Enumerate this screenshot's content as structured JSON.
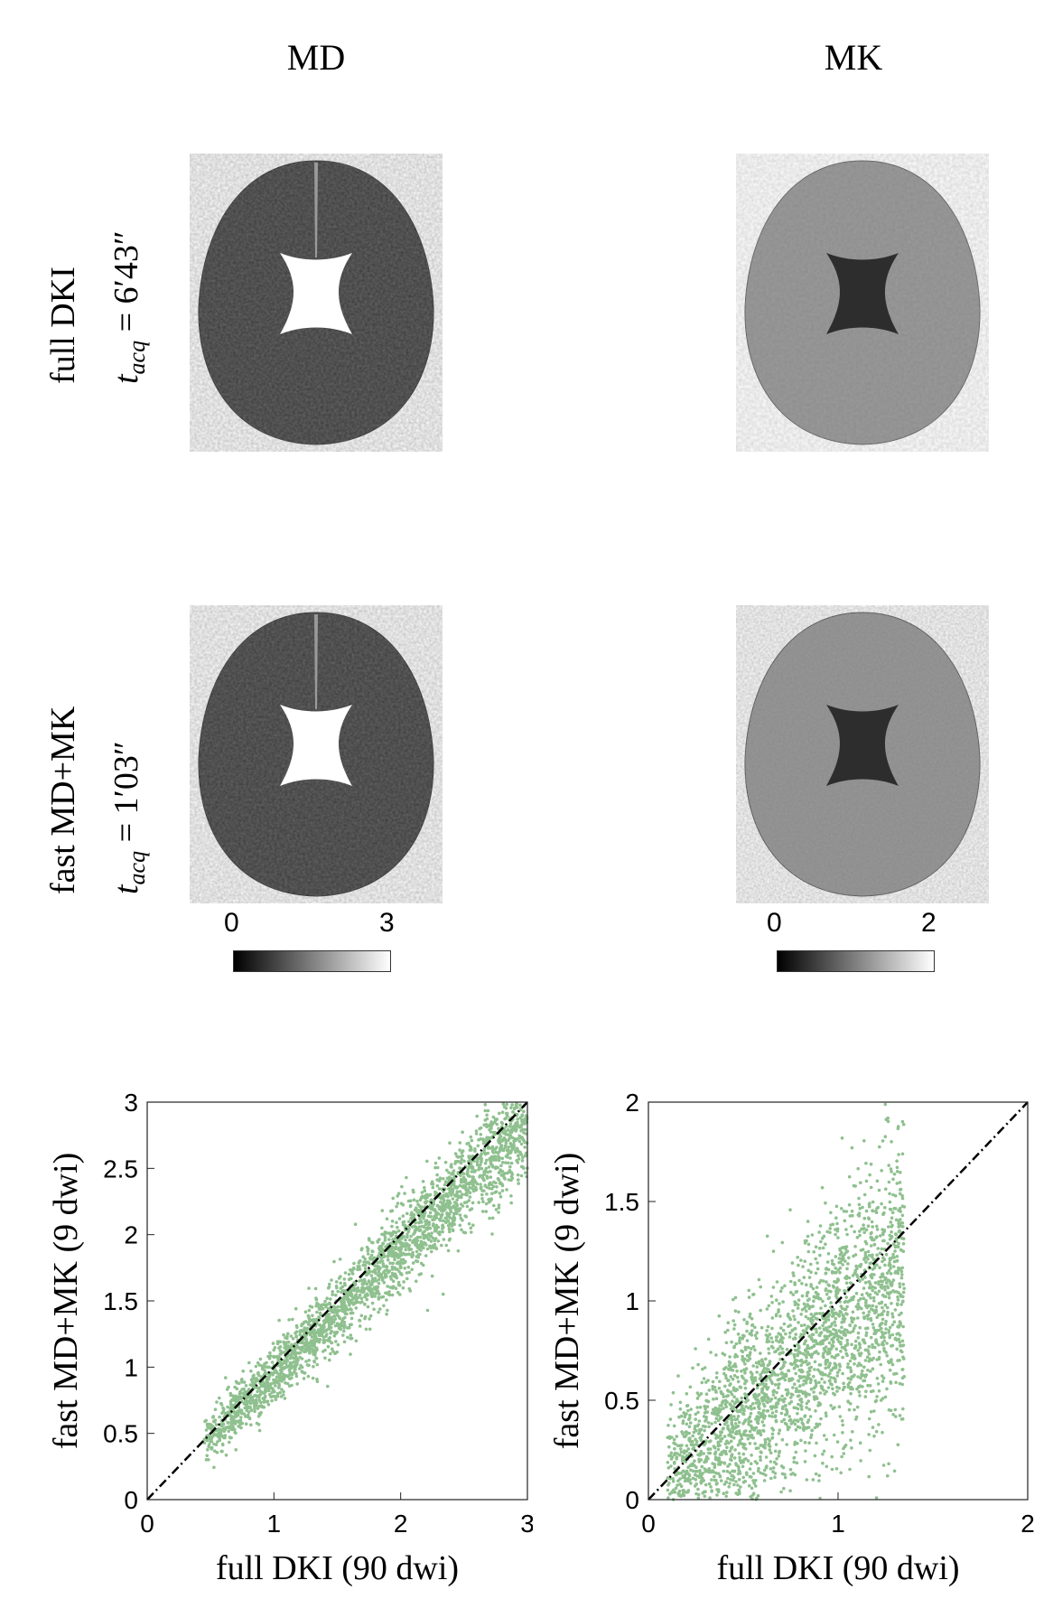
{
  "columns": {
    "md_title": "MD",
    "mk_title": "MK"
  },
  "rows": {
    "full": {
      "label": "full DKI",
      "t_symbol": "t",
      "t_sub": "acq",
      "t_value": " = 6′43″"
    },
    "fast": {
      "label": "fast MD+MK",
      "t_symbol": "t",
      "t_sub": "acq",
      "t_value": " = 1′03″"
    }
  },
  "colorbars": {
    "md": {
      "min_label": "0",
      "max_label": "3"
    },
    "mk": {
      "min_label": "0",
      "max_label": "2"
    }
  },
  "chart_data": [
    {
      "type": "scatter",
      "title": "",
      "xlabel": "full DKI (90 dwi)",
      "ylabel": "fast MD+MK (9 dwi)",
      "xlim": [
        0,
        3
      ],
      "ylim": [
        0,
        3
      ],
      "xticks": [
        "0",
        "1",
        "2",
        "3"
      ],
      "yticks": [
        "0",
        "0.5",
        "1",
        "1.5",
        "2",
        "2.5",
        "3"
      ],
      "grid": false,
      "point_color": "#8fc08f",
      "identity_line": true,
      "cloud": {
        "x_range": [
          0.45,
          3.0
        ],
        "slope": 0.95,
        "spread": 0.12
      }
    },
    {
      "type": "scatter",
      "title": "",
      "xlabel": "full DKI (90 dwi)",
      "ylabel": "fast MD+MK (9 dwi)",
      "xlim": [
        0,
        2
      ],
      "ylim": [
        0,
        2
      ],
      "xticks": [
        "0",
        "1",
        "2"
      ],
      "yticks": [
        "0",
        "0.5",
        "1",
        "1.5",
        "2"
      ],
      "grid": false,
      "point_color": "#8fc08f",
      "identity_line": true,
      "cloud": {
        "x_range": [
          0.1,
          1.35
        ],
        "slope": 0.85,
        "spread": 0.28
      }
    }
  ]
}
